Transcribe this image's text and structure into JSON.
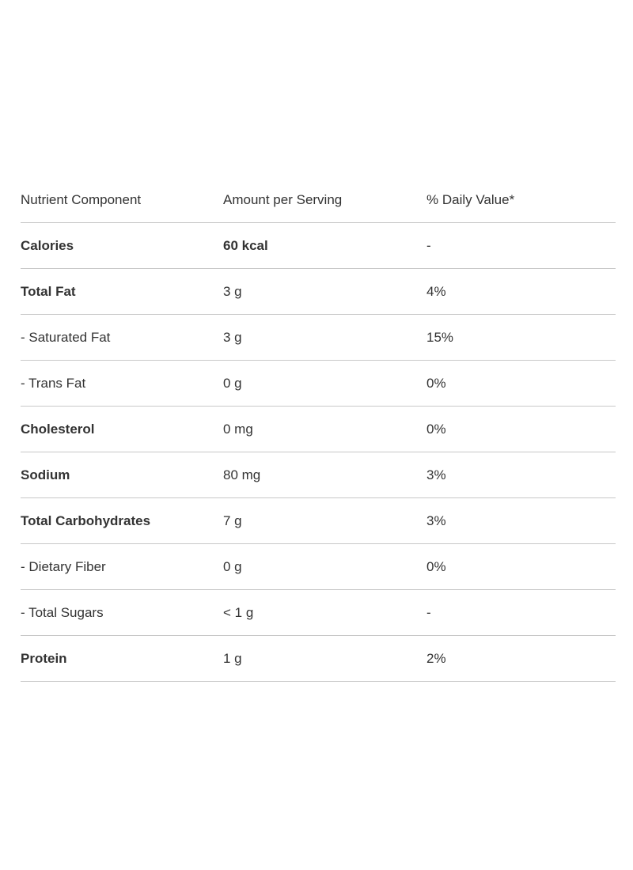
{
  "table": {
    "header": [
      "Nutrient Component",
      "Amount per Serving",
      "% Daily Value*"
    ],
    "rows": [
      [
        "Calories",
        "60 kcal",
        "-"
      ],
      [
        "Total Fat",
        "3 g",
        "4%"
      ],
      [
        "- Saturated Fat",
        "3 g",
        "15%"
      ],
      [
        "- Trans Fat",
        "0 g",
        "0%"
      ],
      [
        "Cholesterol",
        "0 mg",
        "0%"
      ],
      [
        "Sodium",
        "80 mg",
        "3%"
      ],
      [
        "Total Carbohydrates",
        "7 g",
        "3%"
      ],
      [
        "- Dietary Fiber",
        "0 g",
        "0%"
      ],
      [
        "- Total Sugars",
        "< 1 g",
        "-"
      ],
      [
        "Protein",
        "1 g",
        "2%"
      ]
    ]
  }
}
